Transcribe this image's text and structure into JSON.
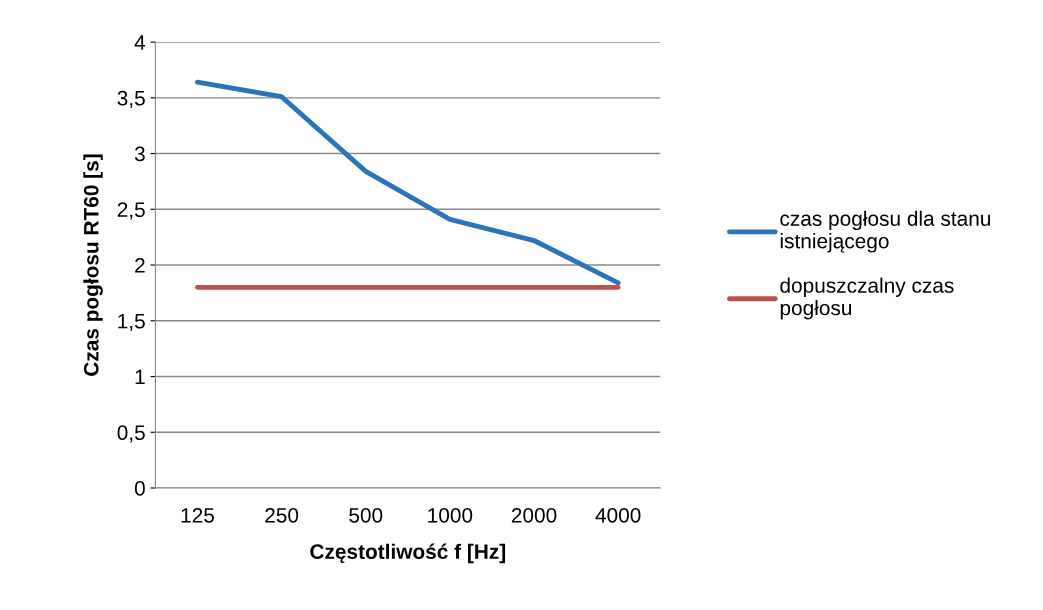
{
  "chart_data": {
    "type": "line",
    "xlabel": "Częstotliwość f [Hz]",
    "ylabel": "Czas pogłosu RT60 [s]",
    "categories": [
      "125",
      "250",
      "500",
      "1000",
      "2000",
      "4000"
    ],
    "series": [
      {
        "name": "czas pogłosu dla stanu istniejącego",
        "color": "#2a74b8",
        "values": [
          3.64,
          3.51,
          2.84,
          2.41,
          2.22,
          1.84
        ]
      },
      {
        "name": "dopuszczalny czas pogłosu",
        "color": "#c0504d",
        "values": [
          1.8,
          1.8,
          1.8,
          1.8,
          1.8,
          1.8
        ]
      }
    ],
    "ylim": [
      0,
      4
    ],
    "yticks": [
      0,
      {
        "value": 0.5,
        "label": "0,5"
      },
      1,
      {
        "value": 1.5,
        "label": "1,5"
      },
      2,
      {
        "value": 2.5,
        "label": "2,5"
      },
      3,
      {
        "value": 3.5,
        "label": "3,5"
      },
      4
    ],
    "grid": "y",
    "legend": "right",
    "marker": "none",
    "line_style": "solid"
  }
}
